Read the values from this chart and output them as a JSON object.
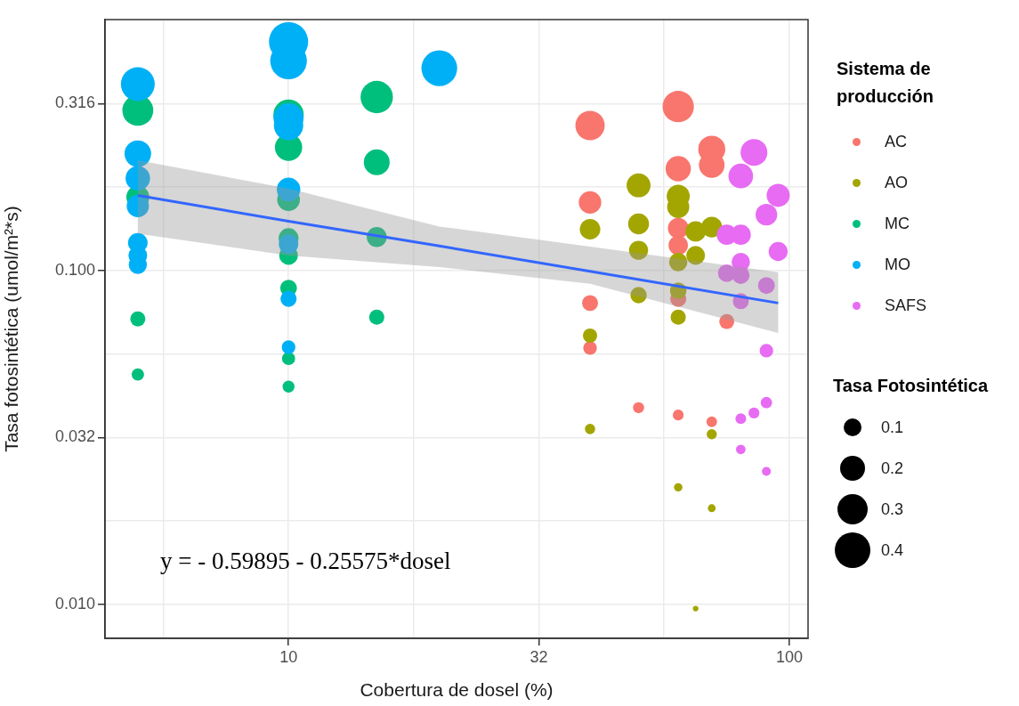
{
  "chart_data": {
    "type": "bubble",
    "xlabel": "Cobertura de dosel (%)",
    "ylabel": "Tasa fotosintética (umol/m²*s)",
    "legend_title": [
      "Sistema de producción",
      "Tasa Fotosintética"
    ],
    "annotations": [
      "y = - 0.59895 - 0.25575*dosel"
    ],
    "log": "xy",
    "grid": true,
    "legend": "right",
    "marker": "circle",
    "xlim": [
      4.3,
      109
    ],
    "ylim": [
      0.0079,
      0.565
    ],
    "xticks": [
      {
        "value": 5.623,
        "label": null
      },
      10,
      {
        "value": 17.78,
        "label": null
      },
      {
        "value": 31.62,
        "label": "32"
      },
      {
        "value": 56.23,
        "label": null
      },
      100
    ],
    "yticks": [
      {
        "value": 0.01,
        "label": "0.010"
      },
      {
        "value": 0.01778,
        "label": null
      },
      {
        "value": 0.03162,
        "label": "0.032"
      },
      {
        "value": 0.05623,
        "label": null
      },
      {
        "value": 0.1,
        "label": "0.100"
      },
      {
        "value": 0.1778,
        "label": null
      },
      {
        "value": 0.3162,
        "label": "0.316"
      }
    ],
    "size_legend": [
      0.1,
      0.2,
      0.3,
      0.4
    ],
    "series": [
      {
        "name": "AC",
        "color": "#f8766d",
        "x": [
          40,
          40,
          40,
          40,
          50,
          60,
          60,
          60,
          60,
          60,
          60,
          70,
          70,
          70,
          75
        ],
        "values": [
          0.272,
          0.16,
          0.0799,
          0.0586,
          0.0388,
          0.31,
          0.202,
          0.134,
          0.119,
          0.0823,
          0.0369,
          0.231,
          0.207,
          0.0352,
          0.0703
        ],
        "sizes": [
          0.272,
          0.16,
          0.0799,
          0.0586,
          0.0388,
          0.31,
          0.202,
          0.134,
          0.119,
          0.0823,
          0.0369,
          0.231,
          0.207,
          0.0352,
          0.0703
        ]
      },
      {
        "name": "AO",
        "color": "#a3a500",
        "x": [
          40,
          40,
          40,
          50,
          50,
          50,
          50,
          60,
          60,
          60,
          60,
          60,
          60,
          65,
          65,
          65,
          70,
          70,
          70
        ],
        "values": [
          0.133,
          0.0638,
          0.0335,
          0.18,
          0.138,
          0.115,
          0.0844,
          0.167,
          0.155,
          0.106,
          0.087,
          0.0725,
          0.0224,
          0.131,
          0.111,
          0.0097,
          0.135,
          0.0323,
          0.0194
        ],
        "sizes": [
          0.133,
          0.0638,
          0.0335,
          0.18,
          0.138,
          0.115,
          0.0844,
          0.167,
          0.155,
          0.106,
          0.087,
          0.0725,
          0.0224,
          0.131,
          0.111,
          0.0097,
          0.135,
          0.0323,
          0.0194
        ]
      },
      {
        "name": "MC",
        "color": "#00bf7d",
        "x": [
          5,
          5,
          5,
          5,
          10,
          10,
          10,
          10,
          10,
          10,
          10,
          10,
          15,
          15,
          15,
          15
        ],
        "values": [
          0.302,
          0.166,
          0.0716,
          0.0488,
          0.293,
          0.234,
          0.163,
          0.125,
          0.111,
          0.0886,
          0.0545,
          0.0449,
          0.331,
          0.211,
          0.126,
          0.0725
        ],
        "sizes": [
          0.302,
          0.166,
          0.0716,
          0.0488,
          0.293,
          0.234,
          0.163,
          0.125,
          0.111,
          0.0886,
          0.0545,
          0.0449,
          0.331,
          0.211,
          0.126,
          0.0725
        ]
      },
      {
        "name": "MO",
        "color": "#00b0f6",
        "x": [
          5,
          5,
          5,
          5,
          5,
          5,
          5,
          10,
          10,
          10,
          10,
          10,
          10,
          10,
          10,
          20
        ],
        "values": [
          0.362,
          0.224,
          0.189,
          0.156,
          0.121,
          0.111,
          0.104,
          0.485,
          0.425,
          0.286,
          0.272,
          0.175,
          0.12,
          0.0823,
          0.0589,
          0.404
        ],
        "sizes": [
          0.362,
          0.224,
          0.189,
          0.156,
          0.121,
          0.111,
          0.104,
          0.485,
          0.425,
          0.286,
          0.272,
          0.175,
          0.12,
          0.0823,
          0.0589,
          0.404
        ]
      },
      {
        "name": "SAFS",
        "color": "#e76bf3",
        "x": [
          75,
          75,
          80,
          80,
          80,
          80,
          80,
          80,
          80,
          85,
          85,
          90,
          90,
          90,
          90,
          90,
          95,
          95
        ],
        "values": [
          0.128,
          0.0982,
          0.192,
          0.128,
          0.106,
          0.0968,
          0.0809,
          0.036,
          0.0291,
          0.226,
          0.0374,
          0.147,
          0.0902,
          0.0575,
          0.0402,
          0.025,
          0.168,
          0.114
        ],
        "sizes": [
          0.128,
          0.0982,
          0.192,
          0.128,
          0.106,
          0.0968,
          0.0809,
          0.036,
          0.0291,
          0.226,
          0.0374,
          0.147,
          0.0902,
          0.0575,
          0.0402,
          0.025,
          0.168,
          0.114
        ]
      },
      {
        "type": "line",
        "marker": "none",
        "color": "#3366ff",
        "x": [
          5,
          10,
          20,
          40,
          95
        ],
        "values": [
          0.168,
          0.1405,
          0.1185,
          0.0994,
          0.0799
        ],
        "lower": [
          0.129,
          0.111,
          0.1024,
          0.0913,
          0.065
        ],
        "upper": [
          0.214,
          0.176,
          0.1355,
          0.118,
          0.0988
        ]
      }
    ]
  }
}
